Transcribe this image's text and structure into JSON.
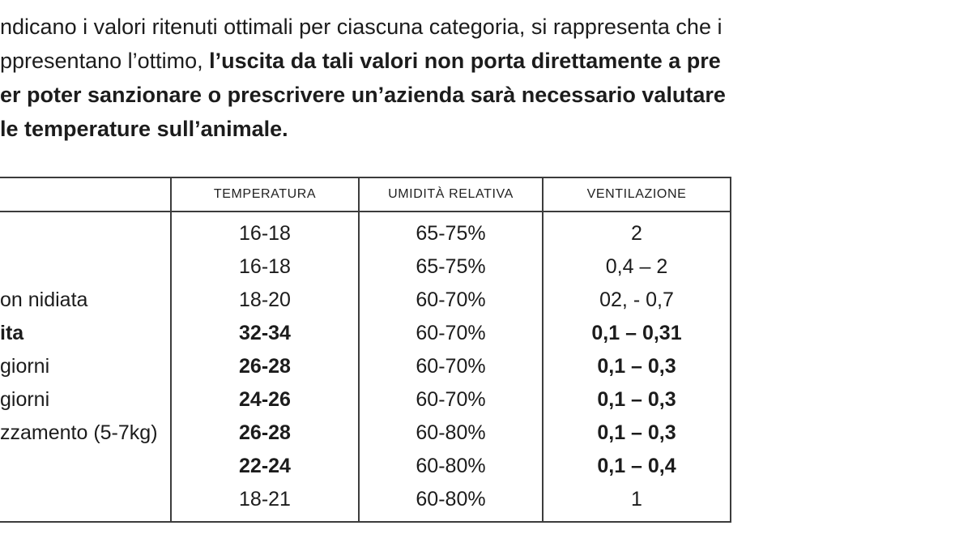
{
  "intro": {
    "line1": "ndicano i valori ritenuti ottimali per ciascuna categoria, si rappresenta che i",
    "line2_regular": "ppresentano l’ottimo, ",
    "line2_bold": "l’uscita da tali valori non porta direttamente a pre",
    "line3": "er poter sanzionare o prescrivere un’azienda sarà necessario valutare",
    "line4": "le temperature sull’animale."
  },
  "table": {
    "headers": {
      "category": "",
      "temperatura": "TEMPERATURA",
      "umidita": "UMIDITÀ RELATIVA",
      "ventilazione": "VENTILAZIONE"
    },
    "rows": [
      {
        "label": "",
        "temp": "16-18",
        "hum": "65-75%",
        "vent": "2"
      },
      {
        "label": "",
        "temp": "16-18",
        "hum": "65-75%",
        "vent": "0,4 – 2"
      },
      {
        "label": "on nidiata",
        "temp": "18-20",
        "hum": "60-70%",
        "vent": "02, - 0,7"
      },
      {
        "label": "ita",
        "temp": "32-34",
        "hum": "60-70%",
        "vent": "0,1 – 0,31"
      },
      {
        "label": "giorni",
        "temp": "26-28",
        "hum": "60-70%",
        "vent": "0,1 – 0,3"
      },
      {
        "label": "giorni",
        "temp": "24-26",
        "hum": "60-70%",
        "vent": "0,1 – 0,3"
      },
      {
        "label": "zzamento (5-7kg)",
        "temp": "26-28",
        "hum": "60-80%",
        "vent": "0,1 – 0,3"
      },
      {
        "label": "",
        "temp": "22-24",
        "hum": "60-80%",
        "vent": "0,1 – 0,4"
      },
      {
        "label": "",
        "temp": "18-21",
        "hum": "60-80%",
        "vent": "1"
      }
    ]
  }
}
